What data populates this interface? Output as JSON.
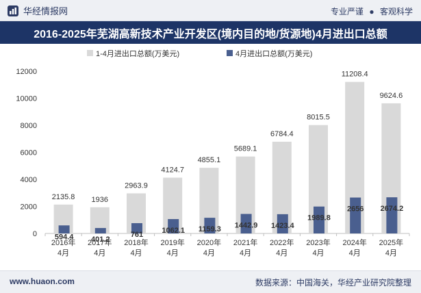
{
  "header": {
    "brand": "华经情报网",
    "tag1": "专业严谨",
    "tag_separator": "●",
    "tag2": "客观科学"
  },
  "title": "2016-2025年芜湖高新技术产业开发区(境内目的地/货源地)4月进出口总额",
  "footer": {
    "website": "www.huaon.com",
    "source": "数据来源：中国海关，华经产业研究院整理"
  },
  "colors": {
    "series1": "#d9d9d9",
    "series2": "#4a5f8f",
    "title_bg": "#1d3466",
    "text": "#333333"
  },
  "chart_data": {
    "type": "bar",
    "categories": [
      [
        "2016年",
        "4月"
      ],
      [
        "2017年",
        "4月"
      ],
      [
        "2018年",
        "4月"
      ],
      [
        "2019年",
        "4月"
      ],
      [
        "2020年",
        "4月"
      ],
      [
        "2021年",
        "4月"
      ],
      [
        "2022年",
        "4月"
      ],
      [
        "2023年",
        "4月"
      ],
      [
        "2024年",
        "4月"
      ],
      [
        "2025年",
        "4月"
      ]
    ],
    "series": [
      {
        "name": "1-4月进出口总额(万美元)",
        "values": [
          2135.8,
          1936,
          2963.9,
          4124.7,
          4855.1,
          5689.1,
          6784.4,
          8015.5,
          11208.4,
          9624.6
        ],
        "labels": [
          "2135.8",
          "1936",
          "2963.9",
          "4124.7",
          "4855.1",
          "5689.1",
          "6784.4",
          "8015.5",
          "11208.4",
          "9624.6"
        ]
      },
      {
        "name": "4月进出口总额(万美元)",
        "values": [
          594.4,
          401.2,
          761,
          1062.1,
          1159.3,
          1442.9,
          1423.4,
          1989.8,
          2656,
          2674.2
        ],
        "labels": [
          "594.4",
          "401.2",
          "761",
          "1062.1",
          "1159.3",
          "1442.9",
          "1423.4",
          "1989.8",
          "2656",
          "2674.2"
        ]
      }
    ],
    "ylim": [
      0,
      12000
    ],
    "yticks": [
      0,
      2000,
      4000,
      6000,
      8000,
      10000,
      12000
    ],
    "ytick_labels": [
      "0",
      "2000",
      "4000",
      "6000",
      "8000",
      "10000",
      "12000"
    ],
    "legend_position": "top-center",
    "grid": false
  }
}
